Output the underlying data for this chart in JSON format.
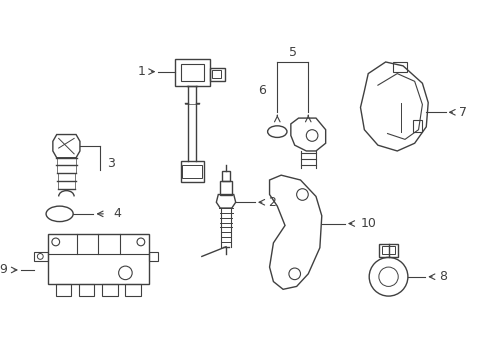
{
  "bg_color": "#ffffff",
  "line_color": "#404040",
  "label_color": "#000000",
  "figsize": [
    4.9,
    3.6
  ],
  "dpi": 100,
  "lw": 1.0
}
